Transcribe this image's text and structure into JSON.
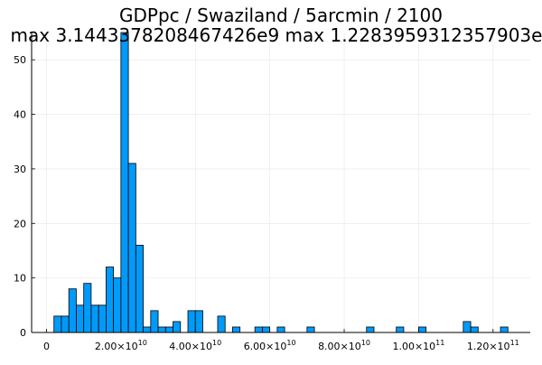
{
  "chart_data": {
    "type": "bar",
    "title": "GDPpc / Swaziland / 5arcmin / 2100",
    "subtitle": "max 3.1443378208467426e9  max 1.2283959312357903e",
    "xlabel": "",
    "ylabel": "",
    "grid": true,
    "legend": "none",
    "bar_color": "#009af9",
    "bar_edge_color": "#000000",
    "bin_width": 2000000000,
    "x_range": [
      -4000000000,
      130000000000
    ],
    "ylim": [
      0,
      55
    ],
    "y_ticks": [
      {
        "value": 0,
        "label": "0"
      },
      {
        "value": 10,
        "label": "10"
      },
      {
        "value": 20,
        "label": "20"
      },
      {
        "value": 30,
        "label": "30"
      },
      {
        "value": 40,
        "label": "40"
      },
      {
        "value": 50,
        "label": "50"
      }
    ],
    "x_ticks": [
      {
        "value": 0,
        "mant": "0",
        "exp": ""
      },
      {
        "value": 20000000000,
        "mant": "2.00×10",
        "exp": "10"
      },
      {
        "value": 40000000000,
        "mant": "4.00×10",
        "exp": "10"
      },
      {
        "value": 60000000000,
        "mant": "6.00×10",
        "exp": "10"
      },
      {
        "value": 80000000000,
        "mant": "8.00×10",
        "exp": "10"
      },
      {
        "value": 100000000000,
        "mant": "1.00×10",
        "exp": "11"
      },
      {
        "value": 120000000000,
        "mant": "1.20×10",
        "exp": "11"
      }
    ],
    "bins": [
      {
        "x0": 2000000000,
        "count": 3
      },
      {
        "x0": 4000000000,
        "count": 3
      },
      {
        "x0": 6000000000,
        "count": 8
      },
      {
        "x0": 8000000000,
        "count": 5
      },
      {
        "x0": 10000000000,
        "count": 9
      },
      {
        "x0": 12000000000,
        "count": 5
      },
      {
        "x0": 14000000000,
        "count": 5
      },
      {
        "x0": 16000000000,
        "count": 12
      },
      {
        "x0": 18000000000,
        "count": 10
      },
      {
        "x0": 20000000000,
        "count": 55
      },
      {
        "x0": 22000000000,
        "count": 31
      },
      {
        "x0": 24000000000,
        "count": 16
      },
      {
        "x0": 26000000000,
        "count": 1
      },
      {
        "x0": 28000000000,
        "count": 4
      },
      {
        "x0": 30000000000,
        "count": 1
      },
      {
        "x0": 32000000000,
        "count": 1
      },
      {
        "x0": 34000000000,
        "count": 2
      },
      {
        "x0": 38000000000,
        "count": 4
      },
      {
        "x0": 40000000000,
        "count": 4
      },
      {
        "x0": 46000000000,
        "count": 3
      },
      {
        "x0": 50000000000,
        "count": 1
      },
      {
        "x0": 56000000000,
        "count": 1
      },
      {
        "x0": 58000000000,
        "count": 1
      },
      {
        "x0": 62000000000,
        "count": 1
      },
      {
        "x0": 70000000000,
        "count": 1
      },
      {
        "x0": 86000000000,
        "count": 1
      },
      {
        "x0": 94000000000,
        "count": 1
      },
      {
        "x0": 100000000000,
        "count": 1
      },
      {
        "x0": 112000000000,
        "count": 2
      },
      {
        "x0": 114000000000,
        "count": 1
      },
      {
        "x0": 122000000000,
        "count": 1
      }
    ]
  }
}
